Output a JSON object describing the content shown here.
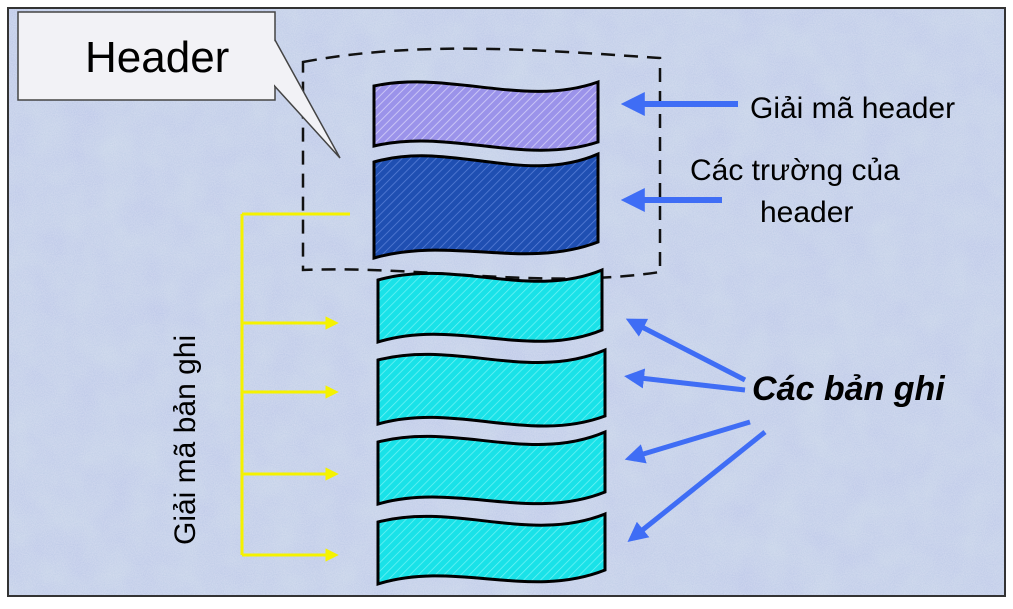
{
  "header_callout": {
    "label": "Header"
  },
  "labels": {
    "decode_header": "Giải mã header",
    "header_fields_line1": "Các trường của",
    "header_fields_line2": "header",
    "records": "Các bản ghi",
    "decode_records": "Giải mã bản ghi"
  },
  "colors": {
    "background": "#b8c4e6",
    "header_decode_fill": "#9b93ea",
    "header_fields_fill": "#1f4fb2",
    "record_fill": "#19e2e8",
    "blue_arrow": "#3f6df5",
    "yellow_arrow": "#f5f200",
    "callout_fill": "#f2f2f6"
  },
  "icons": [
    "blue-pointer-arrow",
    "yellow-decode-arrow",
    "callout-box"
  ]
}
